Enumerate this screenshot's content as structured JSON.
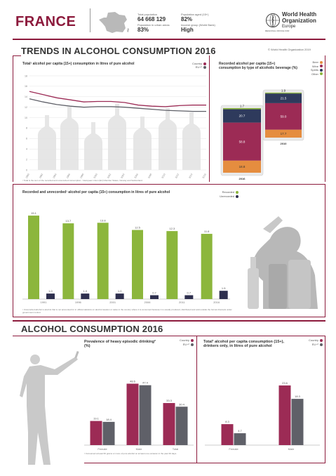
{
  "header": {
    "country": "FRANCE",
    "total_population_label": "Total population",
    "total_population": "64 668 129",
    "urban_label": "Population in urban areas",
    "urban": "83%",
    "aged_label": "Population aged (15+)",
    "aged": "82%",
    "income_label": "Income group (World Bank)",
    "income": "High",
    "who_line1": "World Health",
    "who_line2": "Organization",
    "who_line3": "Europe",
    "who_sub": "REGIONAL OFFICE FOR"
  },
  "trends": {
    "title": "TRENDS IN ALCOHOL CONSUMPTION 2016",
    "copyright": "© World Health Organization 2019"
  },
  "consumption": {
    "title": "ALCOHOL CONSUMPTION 2016"
  },
  "colors": {
    "country": "#9c2b55",
    "eu": "#5f6068",
    "recorded": "#8cb63c",
    "unrecorded": "#2e2f4e",
    "beer": "#e58d3f",
    "wine": "#9c2b55",
    "spirits": "#2e3a5c",
    "other": "#8cb63c"
  },
  "panels": {
    "trend_title": "Total¹ alcohol per capita (15+) consumption in litres of pure alcohol",
    "trend_note": "¹ Total is the sum of the recorded and unrecorded consumption. ² European Union (EU) Member States, Norway and Switzerland.",
    "bev_title": "Recorded alcohol per capita (15+) consumption by type of alcoholic beverage (%)",
    "recunrec_title": "Recorded and unrecorded¹ alcohol per capita (15+) consumption in litres of pure alcohol",
    "recunrec_note": "¹ Unrecorded alcohol is alcohol that is not accounted for in official statistics on alcohol taxation or sales in the country where it is consumed because it is usually produced, distributed and sold outside the formal channels under government control.",
    "hed_title": "Prevalence of heavy episodic drinking² (%)",
    "hed_note": "² Consumed at least 60 grams or more of pure alcohol on at least one occasion in the past 30 days.",
    "drinkers_title": "Total¹ alcohol per capita consumption (15+), drinkers only, in litres of pure alcohol"
  },
  "legends": {
    "country": "Country",
    "eu": "EU+²",
    "recorded": "Recorded",
    "unrecorded": "Unrecorded",
    "beer": "Beer",
    "wine": "Wine",
    "spirits": "Spirits",
    "other": "Other"
  },
  "chart_data": [
    {
      "type": "line",
      "id": "trend",
      "ylim": [
        0,
        18
      ],
      "yticks": [
        0,
        2,
        4,
        6,
        8,
        10,
        12,
        14,
        16,
        18
      ],
      "x": [
        "1990",
        "1992",
        "1994",
        "1996",
        "1998",
        "2000",
        "2002",
        "2004",
        "2006",
        "2008",
        "2010",
        "2012",
        "2014",
        "2016"
      ],
      "series": [
        {
          "name": "Country",
          "values": [
            15.0,
            14.4,
            13.8,
            13.4,
            13.0,
            13.1,
            13.1,
            12.9,
            12.4,
            12.2,
            12.1,
            12.3,
            12.4,
            12.4
          ]
        },
        {
          "name": "EU+²",
          "values": [
            13.6,
            13.0,
            12.5,
            12.2,
            12.0,
            12.1,
            12.1,
            12.0,
            11.8,
            11.6,
            11.4,
            11.3,
            11.2,
            11.2
          ]
        }
      ]
    },
    {
      "type": "bar",
      "id": "beverages",
      "stacked": true,
      "categories": [
        "2016",
        "2010"
      ],
      "series": [
        {
          "name": "Beer",
          "values": [
            18.8,
            17.7
          ]
        },
        {
          "name": "Wine",
          "values": [
            58.8,
            59.0
          ]
        },
        {
          "name": "Spirits",
          "values": [
            20.7,
            21.5
          ]
        },
        {
          "name": "Other",
          "values": [
            1.7,
            1.9
          ]
        }
      ]
    },
    {
      "type": "bar",
      "id": "recorded_unrecorded",
      "categories": [
        "1991",
        "1996",
        "2001",
        "2006",
        "2011",
        "2016"
      ],
      "ylim": [
        0,
        16
      ],
      "series": [
        {
          "name": "Recorded",
          "values": [
            15.1,
            13.7,
            13.8,
            12.5,
            12.3,
            11.8
          ]
        },
        {
          "name": "Unrecorded",
          "values": [
            1.0,
            1.0,
            1.0,
            0.7,
            0.7,
            1.5
          ]
        }
      ]
    },
    {
      "type": "bar",
      "id": "heavy_episodic",
      "categories": [
        "Female",
        "Male",
        "Total"
      ],
      "ylim": [
        0,
        60
      ],
      "series": [
        {
          "name": "Country",
          "values": [
            19.1,
            48.6,
            33.3
          ]
        },
        {
          "name": "EU+²",
          "values": [
            18.4,
            47.4,
            30.4
          ]
        }
      ]
    },
    {
      "type": "bar",
      "id": "drinkers_only",
      "categories": [
        "Female",
        "Male"
      ],
      "ylim": [
        0,
        30
      ],
      "series": [
        {
          "name": "Country",
          "values": [
            8.3,
            23.6
          ]
        },
        {
          "name": "EU+²",
          "values": [
            4.7,
            18.3
          ]
        }
      ]
    }
  ]
}
